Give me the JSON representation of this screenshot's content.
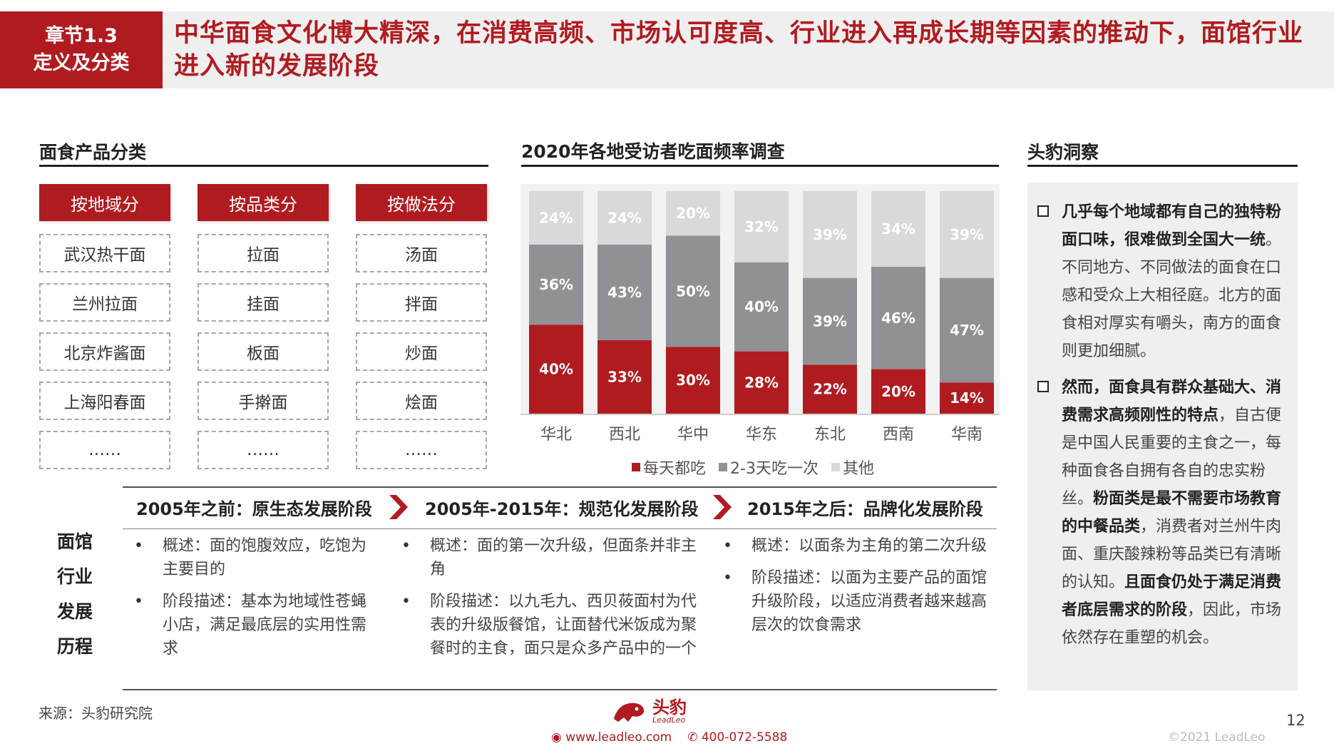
{
  "header": {
    "chapter_line1": "章节1.3",
    "chapter_line2": "定义及分类",
    "title": "中华面食文化博大精深，在消费高频、市场认可度高、行业进入再成长期等因素的推动下，面馆行业进入新的发展阶段"
  },
  "classification": {
    "title": "面食产品分类",
    "columns": [
      {
        "header": "按地域分",
        "items": [
          "武汉热干面",
          "兰州拉面",
          "北京炸酱面",
          "上海阳春面",
          "……"
        ]
      },
      {
        "header": "按品类分",
        "items": [
          "拉面",
          "挂面",
          "板面",
          "手擀面",
          "……"
        ]
      },
      {
        "header": "按做法分",
        "items": [
          "汤面",
          "拌面",
          "炒面",
          "烩面",
          "……"
        ]
      }
    ]
  },
  "chart_section": {
    "title": "2020年各地受访者吃面频率调查"
  },
  "chart_data": {
    "type": "bar",
    "stacked": true,
    "percent": true,
    "title": "2020年各地受访者吃面频率调查",
    "categories": [
      "华北",
      "西北",
      "华中",
      "华东",
      "东北",
      "西南",
      "华南"
    ],
    "series": [
      {
        "name": "每天都吃",
        "color": "#b01b20",
        "values": [
          40,
          33,
          30,
          28,
          22,
          20,
          14
        ],
        "labels": [
          "40%",
          "33%",
          "30%",
          "28%",
          "22%",
          "20%",
          "14%"
        ]
      },
      {
        "name": "2-3天吃一次",
        "color": "#8f9194",
        "values": [
          36,
          43,
          50,
          40,
          39,
          46,
          47
        ],
        "labels": [
          "36%",
          "43%",
          "50%",
          "40%",
          "39%",
          "46%",
          "47%"
        ]
      },
      {
        "name": "其他",
        "color": "#d9d9d9",
        "values": [
          24,
          24,
          20,
          32,
          39,
          34,
          39
        ],
        "labels": [
          "24%",
          "24%",
          "20%",
          "32%",
          "39%",
          "34%",
          "39%"
        ]
      }
    ],
    "ylim": [
      0,
      100
    ],
    "legend_position": "bottom",
    "grid": false
  },
  "insight": {
    "title": "头豹洞察",
    "points": [
      {
        "bold": "几乎每个地域都有自己的独特粉面口味，很难做到全国大一统",
        "text": "。不同地方、不同做法的面食在口感和受众上大相径庭。北方的面食相对厚实有嚼头，南方的面食则更加细腻。"
      },
      {
        "bold1": "然而，面食具有群众基础大、消费需求高频刚性的特点",
        "text1": "，自古便是中国人民重要的主食之一，每种面食各自拥有各自的忠实粉丝。",
        "bold2": "粉面类是最不需要市场教育的中餐品类",
        "text2": "，消费者对兰州牛肉面、重庆酸辣粉等品类已有清晰的认知。",
        "bold3": "且面食仍处于满足消费者底层需求的阶段",
        "text3": "，因此，市场依然存在重塑的机会。"
      }
    ]
  },
  "timeline": {
    "side_label": [
      "面馆",
      "行业",
      "发展",
      "历程"
    ],
    "stages": [
      {
        "heading": "2005年之前：原生态发展阶段",
        "bullets": [
          "概述：面的饱腹效应，吃饱为主要目的",
          "阶段描述：基本为地域性苍蝇小店，满足最底层的实用性需求"
        ]
      },
      {
        "heading": "2005年-2015年：规范化发展阶段",
        "bullets": [
          "概述：面的第一次升级，但面条并非主角",
          "阶段描述：以九毛九、西贝莜面村为代表的升级版餐馆，让面替代米饭成为聚餐时的主食，面只是众多产品中的一个"
        ]
      },
      {
        "heading": "2015年之后：品牌化发展阶段",
        "bullets": [
          "概述：以面条为主角的第二次升级",
          "阶段描述：以面为主要产品的面馆升级阶段，以适应消费者越来越高层次的饮食需求"
        ]
      }
    ]
  },
  "footer": {
    "source": "来源：头豹研究院",
    "logo_text": "头豹",
    "logo_sub": "LeadLeo",
    "website": "www.leadleo.com",
    "phone": "400-072-5588",
    "page_number": "12",
    "copyright": "©2021 LeadLeo"
  }
}
